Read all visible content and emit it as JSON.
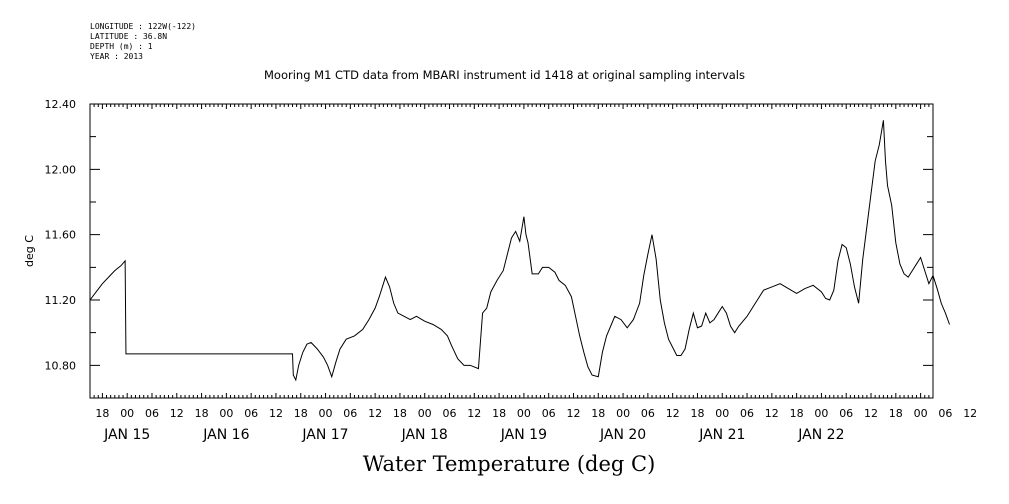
{
  "header": {
    "longitude": "LONGITUDE : 122W(-122)",
    "latitude": "LATITUDE : 36.8N",
    "depth": "DEPTH (m) : 1",
    "year": "YEAR : 2013"
  },
  "chart_data": {
    "type": "line",
    "title": "Mooring M1 CTD data from MBARI instrument id 1418 at original sampling intervals",
    "xlabel": "Water Temperature (deg C)",
    "ylabel": "deg C",
    "ylim": [
      10.6,
      12.4
    ],
    "xlim_hours": [
      -9,
      195
    ],
    "y_ticks": [
      "10.80",
      "11.20",
      "11.60",
      "12.00",
      "12.40"
    ],
    "hour_tick_labels": [
      "18",
      "00",
      "06",
      "12",
      "18",
      "00",
      "06",
      "12",
      "18",
      "00",
      "06",
      "12",
      "18",
      "00",
      "06",
      "12",
      "18",
      "00",
      "06",
      "12",
      "18",
      "00",
      "06",
      "12",
      "18",
      "00",
      "06",
      "12",
      "18",
      "00",
      "06",
      "12",
      "18",
      "00",
      "06",
      "12"
    ],
    "day_labels": [
      "JAN 15",
      "JAN 16",
      "JAN 17",
      "JAN 18",
      "JAN 19",
      "JAN 20",
      "JAN 21",
      "JAN 22"
    ],
    "series": [
      {
        "points": [
          [
            -9,
            11.2
          ],
          [
            -7.5,
            11.25
          ],
          [
            -6,
            11.3
          ],
          [
            -4.5,
            11.34
          ],
          [
            -3,
            11.38
          ],
          [
            -1.5,
            11.41
          ],
          [
            -0.5,
            11.44
          ],
          [
            -0.3,
            10.87
          ],
          [
            10,
            10.87
          ],
          [
            30,
            10.87
          ],
          [
            40,
            10.87
          ],
          [
            40.2,
            10.74
          ],
          [
            40.8,
            10.71
          ],
          [
            41.5,
            10.8
          ],
          [
            42.5,
            10.88
          ],
          [
            43.5,
            10.93
          ],
          [
            44.5,
            10.94
          ],
          [
            46,
            10.9
          ],
          [
            47.5,
            10.85
          ],
          [
            48.5,
            10.8
          ],
          [
            49.5,
            10.73
          ],
          [
            50.5,
            10.82
          ],
          [
            51.5,
            10.9
          ],
          [
            53,
            10.96
          ],
          [
            55,
            10.98
          ],
          [
            57,
            11.02
          ],
          [
            58.5,
            11.08
          ],
          [
            60,
            11.15
          ],
          [
            61,
            11.22
          ],
          [
            62,
            11.3
          ],
          [
            62.5,
            11.34
          ],
          [
            63.5,
            11.28
          ],
          [
            64.5,
            11.18
          ],
          [
            65.5,
            11.12
          ],
          [
            67,
            11.1
          ],
          [
            68.5,
            11.08
          ],
          [
            70,
            11.1
          ],
          [
            72,
            11.07
          ],
          [
            74,
            11.05
          ],
          [
            76,
            11.02
          ],
          [
            77.5,
            10.98
          ],
          [
            78.5,
            10.92
          ],
          [
            80,
            10.84
          ],
          [
            81.5,
            10.8
          ],
          [
            83,
            10.8
          ],
          [
            85,
            10.78
          ],
          [
            86,
            11.12
          ],
          [
            87,
            11.15
          ],
          [
            88,
            11.25
          ],
          [
            89.5,
            11.32
          ],
          [
            91,
            11.38
          ],
          [
            92,
            11.48
          ],
          [
            93,
            11.58
          ],
          [
            94,
            11.62
          ],
          [
            95,
            11.56
          ],
          [
            96,
            11.71
          ],
          [
            96.5,
            11.6
          ],
          [
            97,
            11.55
          ],
          [
            98,
            11.36
          ],
          [
            99.5,
            11.36
          ],
          [
            100.5,
            11.4
          ],
          [
            102,
            11.4
          ],
          [
            103.5,
            11.37
          ],
          [
            104.5,
            11.32
          ],
          [
            106,
            11.29
          ],
          [
            107.5,
            11.22
          ],
          [
            108.5,
            11.1
          ],
          [
            109.5,
            10.98
          ],
          [
            110.5,
            10.88
          ],
          [
            111.5,
            10.79
          ],
          [
            112.5,
            10.74
          ],
          [
            114,
            10.73
          ],
          [
            115,
            10.88
          ],
          [
            116,
            10.98
          ],
          [
            117,
            11.04
          ],
          [
            118,
            11.1
          ],
          [
            119.5,
            11.08
          ],
          [
            121,
            11.03
          ],
          [
            122.5,
            11.08
          ],
          [
            124,
            11.18
          ],
          [
            125,
            11.35
          ],
          [
            126,
            11.48
          ],
          [
            127,
            11.6
          ],
          [
            128,
            11.45
          ],
          [
            129,
            11.2
          ],
          [
            130,
            11.06
          ],
          [
            131,
            10.96
          ],
          [
            132,
            10.91
          ],
          [
            133,
            10.86
          ],
          [
            134,
            10.86
          ],
          [
            135,
            10.9
          ],
          [
            136,
            11.02
          ],
          [
            137,
            11.12
          ],
          [
            138,
            11.03
          ],
          [
            139,
            11.04
          ],
          [
            140,
            11.12
          ],
          [
            141,
            11.06
          ],
          [
            142,
            11.08
          ],
          [
            143,
            11.12
          ],
          [
            144,
            11.16
          ],
          [
            145,
            11.12
          ],
          [
            146,
            11.04
          ],
          [
            147,
            11.0
          ],
          [
            148,
            11.04
          ],
          [
            150,
            11.1
          ],
          [
            152,
            11.18
          ],
          [
            154,
            11.26
          ],
          [
            156,
            11.28
          ],
          [
            158,
            11.3
          ],
          [
            160,
            11.27
          ],
          [
            162,
            11.24
          ],
          [
            164,
            11.27
          ],
          [
            166,
            11.29
          ],
          [
            168,
            11.25
          ],
          [
            169,
            11.21
          ],
          [
            170,
            11.2
          ],
          [
            171,
            11.26
          ],
          [
            172,
            11.44
          ],
          [
            173,
            11.54
          ],
          [
            174,
            11.52
          ],
          [
            175,
            11.42
          ],
          [
            176,
            11.28
          ],
          [
            177,
            11.18
          ],
          [
            178,
            11.45
          ],
          [
            179,
            11.65
          ],
          [
            180,
            11.85
          ],
          [
            181,
            12.05
          ],
          [
            182,
            12.15
          ],
          [
            183,
            12.3
          ],
          [
            183.5,
            12.05
          ],
          [
            184,
            11.9
          ],
          [
            185,
            11.78
          ],
          [
            186,
            11.55
          ],
          [
            187,
            11.42
          ],
          [
            188,
            11.36
          ],
          [
            189,
            11.34
          ],
          [
            190,
            11.38
          ],
          [
            191,
            11.42
          ],
          [
            192,
            11.46
          ],
          [
            193,
            11.38
          ],
          [
            194,
            11.3
          ],
          [
            195,
            11.35
          ],
          [
            196,
            11.27
          ],
          [
            197,
            11.18
          ],
          [
            198,
            11.12
          ],
          [
            199,
            11.05
          ]
        ]
      }
    ]
  }
}
